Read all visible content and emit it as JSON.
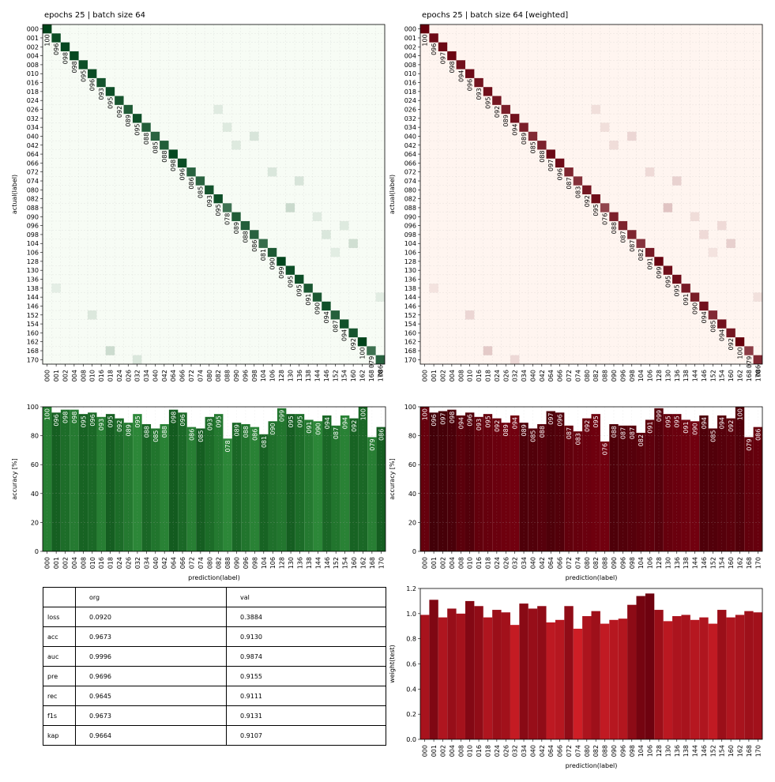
{
  "labels": [
    "000",
    "001",
    "002",
    "004",
    "008",
    "010",
    "016",
    "018",
    "024",
    "026",
    "032",
    "034",
    "040",
    "042",
    "064",
    "066",
    "072",
    "074",
    "080",
    "082",
    "088",
    "090",
    "096",
    "098",
    "104",
    "106",
    "128",
    "130",
    "136",
    "138",
    "144",
    "146",
    "152",
    "154",
    "160",
    "162",
    "168",
    "170"
  ],
  "panels": {
    "left_title": "epochs 25 | batch size 64",
    "right_title": "epochs 25 | batch size 64 [weighted]"
  },
  "colors": {
    "green_dark": "#00441b",
    "green_light": "#f7fcf5",
    "red_dark": "#67000d",
    "red_light": "#fff5f0",
    "grid": "#b0b0b0"
  },
  "chart_data": [
    {
      "name": "confusion-matrix-unweighted",
      "type": "heatmap",
      "title": "epochs 25 | batch size 64",
      "xlabel": "",
      "ylabel": "actual(label)",
      "colormap": "Greens",
      "diagonal": [
        100,
        96,
        98,
        98,
        95,
        96,
        93,
        95,
        92,
        89,
        95,
        88,
        85,
        88,
        98,
        96,
        86,
        85,
        93,
        95,
        78,
        89,
        88,
        86,
        81,
        90,
        99,
        95,
        95,
        91,
        90,
        94,
        87,
        94,
        92,
        100,
        79,
        86
      ]
    },
    {
      "name": "confusion-matrix-weighted",
      "type": "heatmap",
      "title": "epochs 25 | batch size 64 [weighted]",
      "xlabel": "",
      "ylabel": "actual(label)",
      "colormap": "Reds",
      "diagonal": [
        100,
        96,
        97,
        98,
        94,
        96,
        93,
        95,
        92,
        89,
        94,
        89,
        85,
        88,
        97,
        96,
        87,
        83,
        92,
        95,
        76,
        88,
        87,
        87,
        82,
        91,
        99,
        95,
        95,
        91,
        90,
        94,
        85,
        94,
        92,
        100,
        79,
        86
      ]
    },
    {
      "name": "accuracy-unweighted",
      "type": "bar",
      "xlabel": "prediction(label)",
      "ylabel": "accuracy [%]",
      "ylim": [
        0,
        100
      ],
      "yticks": [
        0,
        20,
        40,
        60,
        80,
        100
      ],
      "grid": true,
      "values": [
        100,
        96,
        98,
        98,
        95,
        96,
        93,
        95,
        92,
        89,
        95,
        88,
        85,
        88,
        98,
        96,
        86,
        85,
        93,
        95,
        78,
        89,
        88,
        86,
        81,
        90,
        99,
        95,
        95,
        91,
        90,
        94,
        87,
        94,
        92,
        100,
        79,
        86
      ]
    },
    {
      "name": "accuracy-weighted",
      "type": "bar",
      "xlabel": "prediction(label)",
      "ylabel": "accuracy [%]",
      "ylim": [
        0,
        100
      ],
      "yticks": [
        0,
        20,
        40,
        60,
        80,
        100
      ],
      "grid": true,
      "values": [
        100,
        96,
        97,
        98,
        94,
        96,
        93,
        95,
        92,
        89,
        94,
        89,
        85,
        88,
        97,
        96,
        87,
        83,
        92,
        95,
        76,
        88,
        87,
        87,
        82,
        91,
        99,
        95,
        95,
        91,
        90,
        94,
        85,
        94,
        92,
        100,
        79,
        86
      ]
    },
    {
      "name": "weight-test",
      "type": "bar",
      "xlabel": "prediction(label)",
      "ylabel": "weight(test)",
      "ylim": [
        0,
        1.2
      ],
      "yticks": [
        0.0,
        0.2,
        0.4,
        0.6,
        0.8,
        1.0,
        1.2
      ],
      "grid": false,
      "values": [
        0.99,
        1.11,
        0.97,
        1.04,
        1.0,
        1.1,
        1.06,
        0.97,
        1.03,
        1.01,
        0.91,
        1.08,
        1.04,
        1.06,
        0.93,
        0.95,
        1.06,
        0.88,
        0.98,
        1.02,
        0.92,
        0.95,
        0.96,
        1.07,
        1.14,
        1.16,
        1.03,
        0.94,
        0.98,
        0.99,
        0.95,
        0.97,
        0.92,
        1.03,
        0.97,
        0.99,
        1.02,
        1.01
      ]
    }
  ],
  "table": {
    "header": [
      "",
      "org",
      "val"
    ],
    "rows": [
      [
        "loss",
        "0.0920",
        "0.3884"
      ],
      [
        "acc",
        "0.9673",
        "0.9130"
      ],
      [
        "auc",
        "0.9996",
        "0.9874"
      ],
      [
        "pre",
        "0.9696",
        "0.9155"
      ],
      [
        "rec",
        "0.9645",
        "0.9111"
      ],
      [
        "f1s",
        "0.9673",
        "0.9131"
      ],
      [
        "kap",
        "0.9664",
        "0.9107"
      ]
    ]
  }
}
